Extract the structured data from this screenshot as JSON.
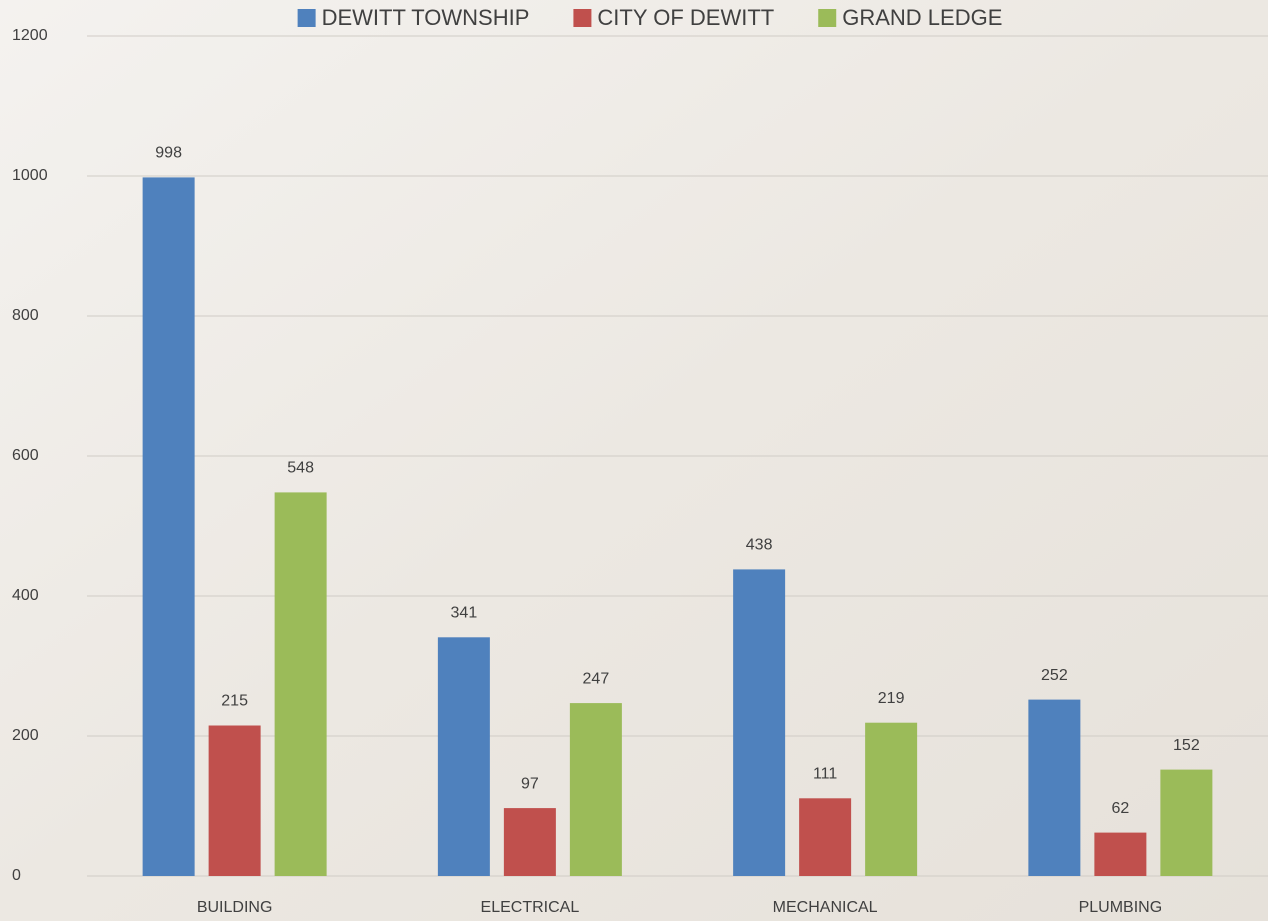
{
  "chart_data": {
    "type": "bar",
    "categories": [
      "BUILDING",
      "ELECTRICAL",
      "MECHANICAL",
      "PLUMBING"
    ],
    "series": [
      {
        "name": "DEWITT TOWNSHIP",
        "color": "#4f81bd",
        "values": [
          998,
          341,
          438,
          252
        ]
      },
      {
        "name": "CITY OF DEWITT",
        "color": "#c0504d",
        "values": [
          215,
          97,
          111,
          62
        ]
      },
      {
        "name": "GRAND LEDGE",
        "color": "#9bbb59",
        "values": [
          548,
          247,
          219,
          152
        ]
      }
    ],
    "ylim": [
      0,
      1200
    ],
    "yticks": [
      0,
      200,
      400,
      600,
      800,
      1000,
      1200
    ],
    "grid": true,
    "legend": "top"
  }
}
